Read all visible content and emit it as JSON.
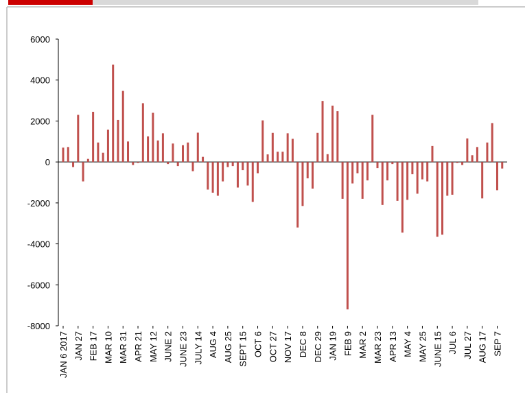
{
  "chart_data": {
    "type": "bar",
    "categories": [
      "JAN 6 2017",
      null,
      null,
      "JAN 27",
      null,
      null,
      "FEB 17",
      null,
      null,
      "MAR 10",
      null,
      null,
      "MAR 31",
      null,
      null,
      "APR 21",
      null,
      null,
      "MAY 12",
      null,
      null,
      "JUNE 2",
      null,
      null,
      "JUNE 23",
      null,
      null,
      "JULY 14",
      null,
      null,
      "AUG 4",
      null,
      null,
      "AUG 25",
      null,
      null,
      "SEPT 15",
      null,
      null,
      "OCT 6",
      null,
      null,
      "OCT 27",
      null,
      null,
      "NOV 17",
      null,
      null,
      "DEC 8",
      null,
      null,
      "DEC 29",
      null,
      null,
      "JAN 19",
      null,
      null,
      "FEB 9",
      null,
      null,
      "MAR 2",
      null,
      null,
      "MAR 23",
      null,
      null,
      "APR 13",
      null,
      null,
      "MAY 4",
      null,
      null,
      "MAY 25",
      null,
      null,
      "JUNE 15",
      null,
      null,
      "JUL 6",
      null,
      null,
      "JUL 27",
      null,
      null,
      "AUG 17",
      null,
      null,
      "SEP 7",
      null
    ],
    "values": [
      700,
      730,
      -250,
      2300,
      -950,
      150,
      2450,
      950,
      450,
      1580,
      4750,
      2050,
      3470,
      1000,
      -150,
      -50,
      2870,
      1250,
      2400,
      1050,
      1400,
      -100,
      900,
      -200,
      820,
      950,
      -450,
      1430,
      250,
      -1350,
      -1500,
      -1650,
      -950,
      -250,
      -200,
      -1250,
      -400,
      -1150,
      -1950,
      -550,
      2030,
      370,
      1420,
      500,
      500,
      1400,
      1130,
      -3200,
      -2150,
      -800,
      -1300,
      1420,
      2980,
      380,
      2750,
      2480,
      -1800,
      -7200,
      -1050,
      -550,
      -1800,
      -900,
      2300,
      -300,
      -2100,
      -900,
      -100,
      -1900,
      -3450,
      -1850,
      -600,
      -1550,
      -850,
      -950,
      780,
      -3650,
      -3550,
      -1650,
      -1600,
      -50,
      -150,
      1150,
      330,
      730,
      -1780,
      950,
      1900,
      -1380,
      -320
    ],
    "color": "#c0504d",
    "ylim": [
      -8000,
      6000
    ],
    "yticks": [
      -8000,
      -6000,
      -4000,
      -2000,
      0,
      2000,
      4000,
      6000
    ]
  }
}
